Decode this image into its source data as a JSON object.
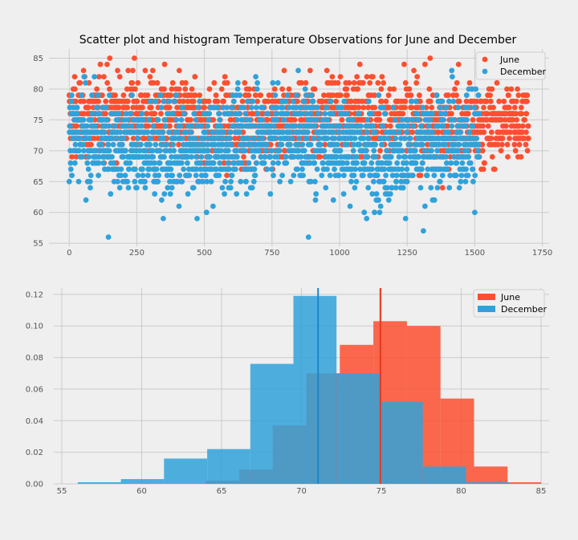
{
  "chart_data": [
    {
      "type": "scatter",
      "title": "Scatter plot and histogram Temperature Observations for June and December",
      "xlim": [
        -75,
        1775
      ],
      "ylim": [
        54.5,
        86.5
      ],
      "xticks": [
        0,
        250,
        500,
        750,
        1000,
        1250,
        1500,
        1750
      ],
      "yticks": [
        55,
        60,
        65,
        70,
        75,
        80,
        85
      ],
      "grid": true,
      "legend_position": "top-right",
      "series": [
        {
          "name": "June",
          "color": "#fc4f30",
          "n_points": 1700,
          "x_range": [
            0,
            1699
          ],
          "y_range": [
            64,
            85
          ],
          "mean": 74.9
        },
        {
          "name": "December",
          "color": "#30a2da",
          "n_points": 1517,
          "x_range": [
            0,
            1516
          ],
          "y_range": [
            56,
            83
          ],
          "mean": 71.0
        }
      ],
      "notable_points": [
        {
          "series": "June",
          "x": 140,
          "y": 84
        },
        {
          "series": "June",
          "x": 1335,
          "y": 85
        },
        {
          "series": "June",
          "x": 1440,
          "y": 84
        },
        {
          "series": "June",
          "x": 235,
          "y": 83
        },
        {
          "series": "June",
          "x": 465,
          "y": 82
        },
        {
          "series": "June",
          "x": 20,
          "y": 82
        },
        {
          "series": "December",
          "x": 145,
          "y": 56
        },
        {
          "series": "December",
          "x": 885,
          "y": 56
        },
        {
          "series": "December",
          "x": 1100,
          "y": 59
        },
        {
          "series": "December",
          "x": 1500,
          "y": 60
        },
        {
          "series": "December",
          "x": 1310,
          "y": 57
        },
        {
          "series": "December",
          "x": 1415,
          "y": 83
        },
        {
          "series": "December",
          "x": 690,
          "y": 82
        }
      ]
    },
    {
      "type": "bar",
      "subtype": "histogram",
      "xlim": [
        54.5,
        85.5
      ],
      "ylim": [
        0,
        0.124
      ],
      "xticks": [
        55,
        60,
        65,
        70,
        75,
        80,
        85
      ],
      "yticks": [
        0.0,
        0.02,
        0.04,
        0.06,
        0.08,
        0.1,
        0.12
      ],
      "ytick_labels": [
        "0.00",
        "0.02",
        "0.04",
        "0.06",
        "0.08",
        "0.10",
        "0.12"
      ],
      "grid": true,
      "legend_position": "top-right",
      "series": [
        {
          "name": "June",
          "color": "#fc4f30",
          "bin_edges": [
            64.0,
            66.1,
            68.2,
            70.3,
            72.4,
            74.5,
            76.6,
            78.7,
            80.8,
            82.9,
            85.0
          ],
          "density": [
            0.002,
            0.009,
            0.037,
            0.07,
            0.088,
            0.103,
            0.1,
            0.054,
            0.011,
            0.001
          ],
          "mean": 74.94
        },
        {
          "name": "December",
          "color": "#30a2da",
          "bin_edges": [
            56.0,
            58.7,
            61.4,
            64.1,
            66.8,
            69.5,
            72.2,
            74.9,
            77.6,
            80.3,
            83.0
          ],
          "density": [
            0.001,
            0.003,
            0.016,
            0.022,
            0.076,
            0.119,
            0.07,
            0.052,
            0.011,
            0.001
          ],
          "mean": 71.04
        }
      ]
    }
  ]
}
